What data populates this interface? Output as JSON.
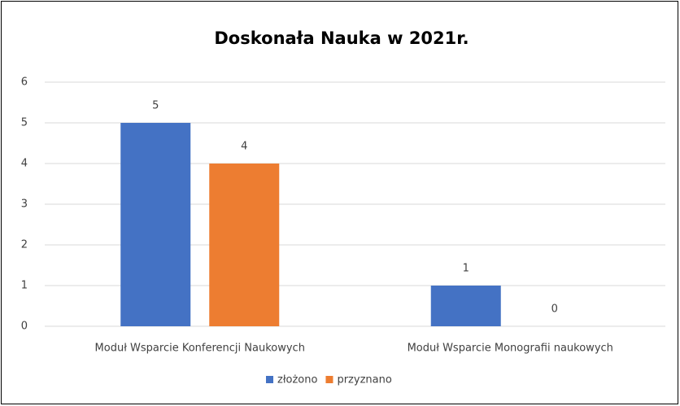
{
  "chart_data": {
    "type": "bar",
    "title": "Doskonała Nauka w 2021r.",
    "categories": [
      "Moduł Wsparcie Konferencji Naukowych",
      "Moduł Wsparcie Monografii naukowych"
    ],
    "series": [
      {
        "name": "złożono",
        "color": "#4472c4",
        "values": [
          5,
          1
        ]
      },
      {
        "name": "przyznano",
        "color": "#ed7d31",
        "values": [
          4,
          0
        ]
      }
    ],
    "ylim": [
      0,
      6
    ],
    "yticks": [
      0,
      1,
      2,
      3,
      4,
      5,
      6
    ],
    "grid": true,
    "legend": "bottom"
  }
}
